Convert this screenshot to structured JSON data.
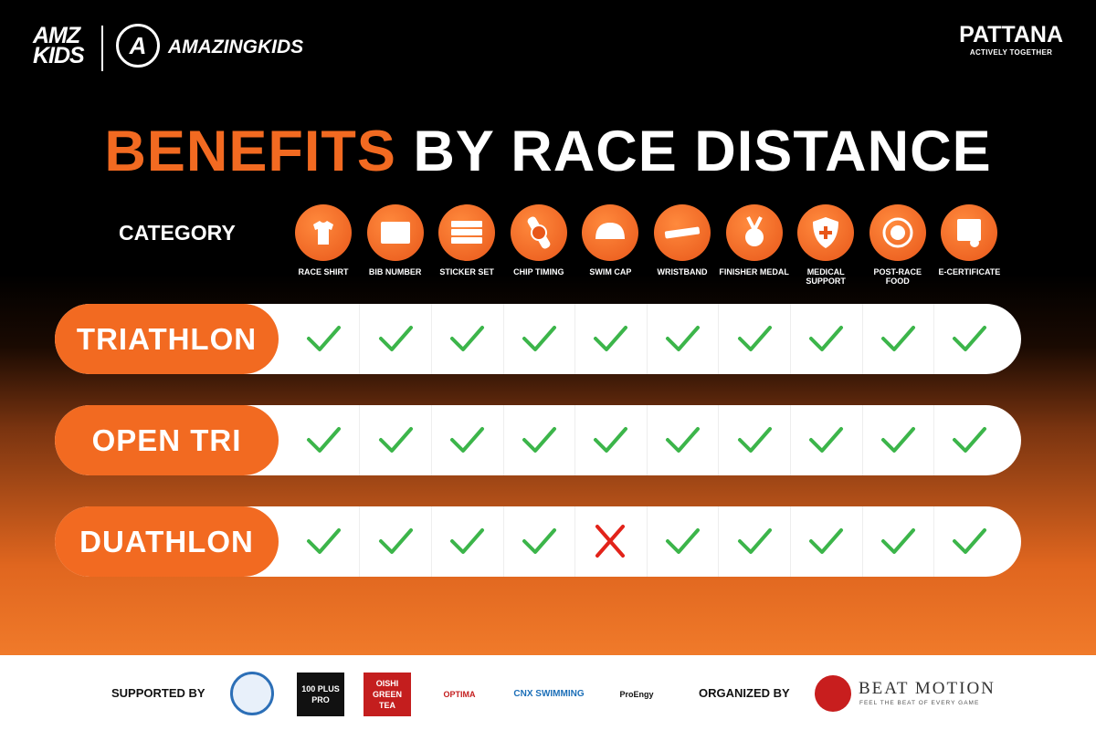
{
  "header": {
    "amz": "AMZ",
    "kids": "KIDS",
    "brand_name": "AMAZINGKIDS",
    "partner": "PATTANA",
    "partner_tagline": "ACTIVELY TOGETHER"
  },
  "title": {
    "highlight": "BENEFITS",
    "rest": "BY RACE DISTANCE"
  },
  "category_label": "CATEGORY",
  "benefits": [
    "RACE SHIRT",
    "BIB NUMBER",
    "STICKER SET",
    "CHIP TIMING",
    "SWIM CAP",
    "WRISTBAND",
    "FINISHER MEDAL",
    "MEDICAL SUPPORT",
    "POST-RACE FOOD",
    "E-CERTIFICATE"
  ],
  "rows": [
    {
      "name": "TRIATHLON",
      "included": [
        true,
        true,
        true,
        true,
        true,
        true,
        true,
        true,
        true,
        true
      ]
    },
    {
      "name": "OPEN TRI",
      "included": [
        true,
        true,
        true,
        true,
        true,
        true,
        true,
        true,
        true,
        true
      ]
    },
    {
      "name": "DUATHLON",
      "included": [
        true,
        true,
        true,
        true,
        false,
        true,
        true,
        true,
        true,
        true
      ]
    }
  ],
  "footer": {
    "supported_by": "SUPPORTED BY",
    "sponsors": [
      "100 PLUS PRO",
      "OISHI GREEN TEA",
      "OPTIMA",
      "CNX SWIMMING",
      "ProEngy"
    ],
    "organized_by": "ORGANIZED BY",
    "organizer": "BEAT MOTION",
    "organizer_tagline": "FEEL THE BEAT OF EVERY GAME"
  }
}
